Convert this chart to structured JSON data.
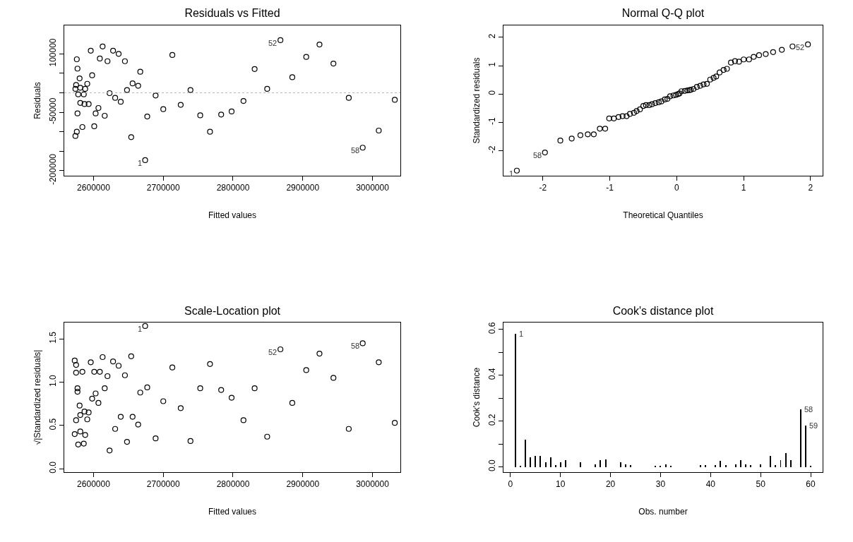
{
  "chart_data": [
    {
      "type": "scatter",
      "title": "Residuals vs Fitted",
      "xlabel": "Fitted values",
      "ylabel": "Residuals",
      "marker": "circle",
      "color": "#000000",
      "x": [
        2576000,
        2577000,
        2580000,
        2575000,
        2574000,
        2581000,
        2588000,
        2591000,
        2578000,
        2586000,
        2581000,
        2587000,
        2593000,
        2577000,
        2584000,
        2576000,
        2574000,
        2596000,
        2598000,
        2601000,
        2603000,
        2607000,
        2609000,
        2613000,
        2616000,
        2620000,
        2623000,
        2628000,
        2631000,
        2636000,
        2639000,
        2645000,
        2648000,
        2654000,
        2656000,
        2664000,
        2667000,
        2674000,
        2677000,
        2689000,
        2700000,
        2713000,
        2725000,
        2739000,
        2753000,
        2767000,
        2783000,
        2798000,
        2815000,
        2831000,
        2849000,
        2868000,
        2885000,
        2905000,
        2924000,
        2944000,
        2966000,
        2986000,
        3009000,
        3032000
      ],
      "values": [
        86000,
        62000,
        37000,
        20000,
        10000,
        13000,
        10000,
        23000,
        -4000,
        -4000,
        -26000,
        -29000,
        -29000,
        -53000,
        -88000,
        -100000,
        -111000,
        108000,
        45000,
        -86000,
        -53000,
        -39000,
        88000,
        119000,
        -59000,
        81000,
        -1000,
        108000,
        -13000,
        100000,
        -23000,
        81000,
        7000,
        -114000,
        24000,
        18000,
        54000,
        -173000,
        -61000,
        -7000,
        -42000,
        97000,
        -31000,
        7000,
        -58000,
        -100000,
        -56000,
        -48000,
        -21000,
        61000,
        10000,
        135000,
        40000,
        92000,
        124000,
        75000,
        -13000,
        -141000,
        -97000,
        -18000
      ],
      "xlim": [
        2558000,
        3040000
      ],
      "xticks": [
        2600000,
        2700000,
        2800000,
        2900000,
        3000000
      ],
      "ylim": [
        -213000,
        173000
      ],
      "yticks": [
        {
          "value": -200000,
          "label": "-200000"
        },
        {
          "value": -150000,
          "label": null
        },
        {
          "value": -100000,
          "label": null
        },
        {
          "value": -50000,
          "label": "-50000"
        },
        {
          "value": 0,
          "label": null
        },
        {
          "value": 50000,
          "label": null
        },
        {
          "value": 100000,
          "label": "100000"
        }
      ],
      "ref_lines": [
        {
          "axis": "y",
          "value": 0,
          "line_style": "dotted",
          "color": "#b3b3b3"
        }
      ],
      "annotations": [
        {
          "text": "1",
          "x": 2674000,
          "y": -173000
        },
        {
          "text": "52",
          "x": 2868000,
          "y": 135000
        },
        {
          "text": "58",
          "x": 2986000,
          "y": -141000
        }
      ]
    },
    {
      "type": "scatter",
      "title": "Normal Q-Q plot",
      "xlabel": "Theoretical Quantiles",
      "ylabel": "Standardized residuals",
      "marker": "circle",
      "color": "#000000",
      "x": [
        -2.39,
        -1.97,
        -1.74,
        -1.57,
        -1.44,
        -1.33,
        -1.24,
        -1.15,
        -1.07,
        -1.01,
        -0.94,
        -0.87,
        -0.81,
        -0.75,
        -0.7,
        -0.64,
        -0.6,
        -0.55,
        -0.5,
        -0.46,
        -0.41,
        -0.37,
        -0.32,
        -0.27,
        -0.23,
        -0.18,
        -0.14,
        -0.1,
        -0.05,
        -0.01,
        0.02,
        0.04,
        0.07,
        0.12,
        0.16,
        0.19,
        0.21,
        0.25,
        0.3,
        0.35,
        0.4,
        0.45,
        0.5,
        0.55,
        0.59,
        0.64,
        0.7,
        0.75,
        0.81,
        0.87,
        0.93,
        1.0,
        1.08,
        1.15,
        1.23,
        1.33,
        1.44,
        1.57,
        1.73,
        1.96
      ],
      "values": [
        -2.7,
        -2.06,
        -1.64,
        -1.57,
        -1.45,
        -1.42,
        -1.42,
        -1.22,
        -1.22,
        -0.86,
        -0.86,
        -0.81,
        -0.78,
        -0.78,
        -0.7,
        -0.66,
        -0.6,
        -0.54,
        -0.42,
        -0.39,
        -0.39,
        -0.36,
        -0.32,
        -0.29,
        -0.26,
        -0.19,
        -0.17,
        -0.08,
        -0.05,
        -0.03,
        0.0,
        0.02,
        0.1,
        0.11,
        0.13,
        0.14,
        0.15,
        0.18,
        0.25,
        0.29,
        0.34,
        0.36,
        0.51,
        0.57,
        0.62,
        0.76,
        0.85,
        0.89,
        1.11,
        1.16,
        1.14,
        1.22,
        1.22,
        1.31,
        1.37,
        1.41,
        1.48,
        1.56,
        1.68,
        1.75
      ],
      "xlim": [
        -2.59,
        2.18
      ],
      "xticks": [
        -2,
        -1,
        0,
        1,
        2
      ],
      "ylim": [
        -2.88,
        2.42
      ],
      "yticks": [
        -2,
        -1,
        0,
        1,
        2
      ],
      "annotations": [
        {
          "text": "1",
          "x": -2.39,
          "y": -2.7
        },
        {
          "text": "58",
          "x": -1.97,
          "y": -2.06
        },
        {
          "text": "52",
          "x": 1.96,
          "y": 1.75
        }
      ]
    },
    {
      "type": "scatter",
      "title": "Scale-Location plot",
      "xlabel": "Fitted values",
      "ylabel": "√|Standardized residuals|",
      "marker": "circle",
      "color": "#000000",
      "x": [
        2674000,
        2573000,
        2575000,
        2575000,
        2584000,
        2596000,
        2613000,
        2601000,
        2609000,
        2620000,
        2628000,
        2636000,
        2645000,
        2654000,
        2713000,
        2767000,
        2868000,
        2924000,
        2986000,
        3009000,
        2905000,
        2944000,
        2577000,
        2577000,
        2616000,
        2603000,
        2598000,
        2607000,
        2667000,
        2677000,
        2700000,
        2753000,
        2783000,
        2798000,
        2831000,
        2885000,
        2725000,
        2580000,
        2581000,
        2587000,
        2593000,
        2575000,
        2591000,
        2639000,
        2656000,
        2664000,
        2815000,
        3032000,
        2573000,
        2581000,
        2588000,
        2631000,
        2578000,
        2586000,
        2648000,
        2689000,
        2739000,
        2849000,
        2966000,
        2623000
      ],
      "values": [
        1.65,
        1.25,
        1.2,
        1.11,
        1.12,
        1.23,
        1.29,
        1.12,
        1.12,
        1.07,
        1.24,
        1.19,
        1.08,
        1.3,
        1.17,
        1.21,
        1.38,
        1.33,
        1.45,
        1.23,
        1.14,
        1.05,
        0.93,
        0.89,
        0.93,
        0.87,
        0.81,
        0.76,
        0.88,
        0.94,
        0.78,
        0.93,
        0.91,
        0.82,
        0.93,
        0.76,
        0.7,
        0.73,
        0.62,
        0.66,
        0.65,
        0.56,
        0.57,
        0.6,
        0.6,
        0.51,
        0.56,
        0.53,
        0.4,
        0.43,
        0.39,
        0.46,
        0.28,
        0.29,
        0.31,
        0.35,
        0.32,
        0.37,
        0.46,
        0.21
      ],
      "xlim": [
        2558000,
        3040000
      ],
      "xticks": [
        2600000,
        2700000,
        2800000,
        2900000,
        3000000
      ],
      "ylim": [
        -0.04,
        1.69
      ],
      "yticks": [
        {
          "value": 0,
          "label": "0.0"
        },
        {
          "value": 0.5,
          "label": "0.5"
        },
        {
          "value": 1,
          "label": "1.0"
        },
        {
          "value": 1.5,
          "label": "1.5"
        }
      ],
      "annotations": [
        {
          "text": "1",
          "x": 2674000,
          "y": 1.65
        },
        {
          "text": "52",
          "x": 2868000,
          "y": 1.38
        },
        {
          "text": "58",
          "x": 2986000,
          "y": 1.45
        }
      ]
    },
    {
      "type": "bar",
      "title": "Cook's distance plot",
      "xlabel": "Obs. number",
      "ylabel": "Cook's distance",
      "color": "#000000",
      "x": [
        1,
        2,
        3,
        4,
        5,
        6,
        7,
        8,
        9,
        10,
        11,
        14,
        17,
        18,
        19,
        22,
        23,
        24,
        29,
        30,
        31,
        32,
        38,
        39,
        41,
        42,
        43,
        45,
        46,
        47,
        48,
        50,
        52,
        53,
        54,
        55,
        56,
        58,
        59,
        60
      ],
      "values": [
        0.58,
        0.006,
        0.12,
        0.043,
        0.047,
        0.047,
        0.02,
        0.043,
        0.008,
        0.02,
        0.029,
        0.02,
        0.012,
        0.029,
        0.033,
        0.02,
        0.012,
        0.008,
        0.006,
        0.006,
        0.012,
        0.006,
        0.008,
        0.008,
        0.008,
        0.025,
        0.008,
        0.012,
        0.029,
        0.012,
        0.008,
        0.012,
        0.049,
        0.008,
        0.029,
        0.061,
        0.029,
        0.25,
        0.18,
        0.006
      ],
      "xlim": [
        -1.4,
        62.4
      ],
      "xticks": [
        0,
        10,
        20,
        30,
        40,
        50,
        60
      ],
      "ylim": [
        -0.023,
        0.63
      ],
      "yticks": [
        {
          "value": 0,
          "label": "0.0"
        },
        {
          "value": 0.1,
          "label": null
        },
        {
          "value": 0.2,
          "label": "0.2"
        },
        {
          "value": 0.3,
          "label": null
        },
        {
          "value": 0.4,
          "label": "0.4"
        },
        {
          "value": 0.5,
          "label": null
        },
        {
          "value": 0.6,
          "label": "0.6"
        }
      ],
      "annotations": [
        {
          "text": "1",
          "x": 1,
          "y": 0.58
        },
        {
          "text": "58",
          "x": 58,
          "y": 0.25
        },
        {
          "text": "59",
          "x": 59,
          "y": 0.18
        }
      ]
    }
  ]
}
